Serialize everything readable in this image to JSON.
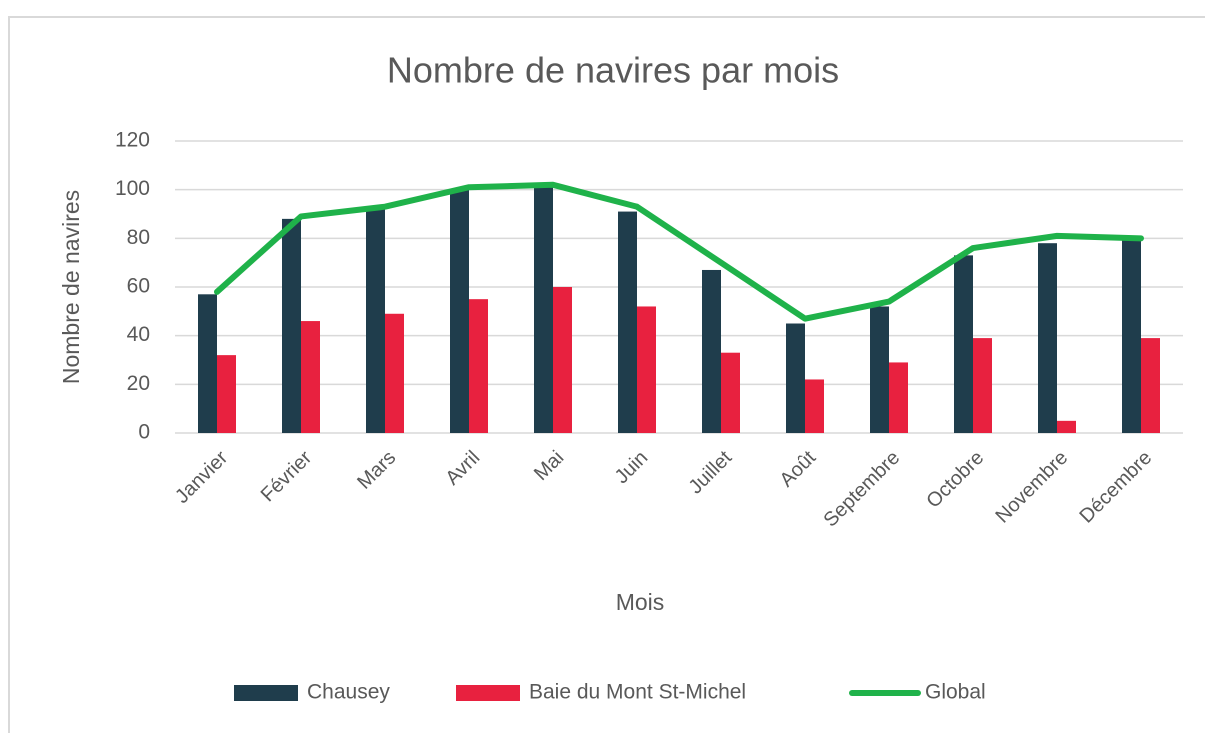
{
  "chart_data": {
    "type": "bar",
    "title": "Nombre de navires par mois",
    "x_label": "Mois",
    "y_label": "Nombre de navires",
    "categories": [
      "Janvier",
      "Février",
      "Mars",
      "Avril",
      "Mai",
      "Juin",
      "Juillet",
      "Août",
      "Septembre",
      "Octobre",
      "Novembre",
      "Décembre"
    ],
    "series": [
      {
        "name": "Chausey",
        "type": "bar",
        "color": "#1f3d4c",
        "values": [
          57,
          88,
          92,
          100,
          101,
          91,
          67,
          45,
          52,
          73,
          78,
          80
        ]
      },
      {
        "name": "Baie du Mont St-Michel",
        "type": "bar",
        "color": "#e8213f",
        "values": [
          32,
          46,
          49,
          55,
          60,
          52,
          33,
          22,
          29,
          39,
          5,
          39
        ]
      },
      {
        "name": "Global",
        "type": "line",
        "color": "#1fb24a",
        "values": [
          58,
          89,
          93,
          101,
          102,
          93,
          70,
          47,
          54,
          76,
          81,
          80
        ]
      }
    ],
    "ylim": [
      0,
      120
    ],
    "yticks": [
      0,
      20,
      40,
      60,
      80,
      100,
      120
    ],
    "grid": true,
    "legend": "bottom"
  }
}
